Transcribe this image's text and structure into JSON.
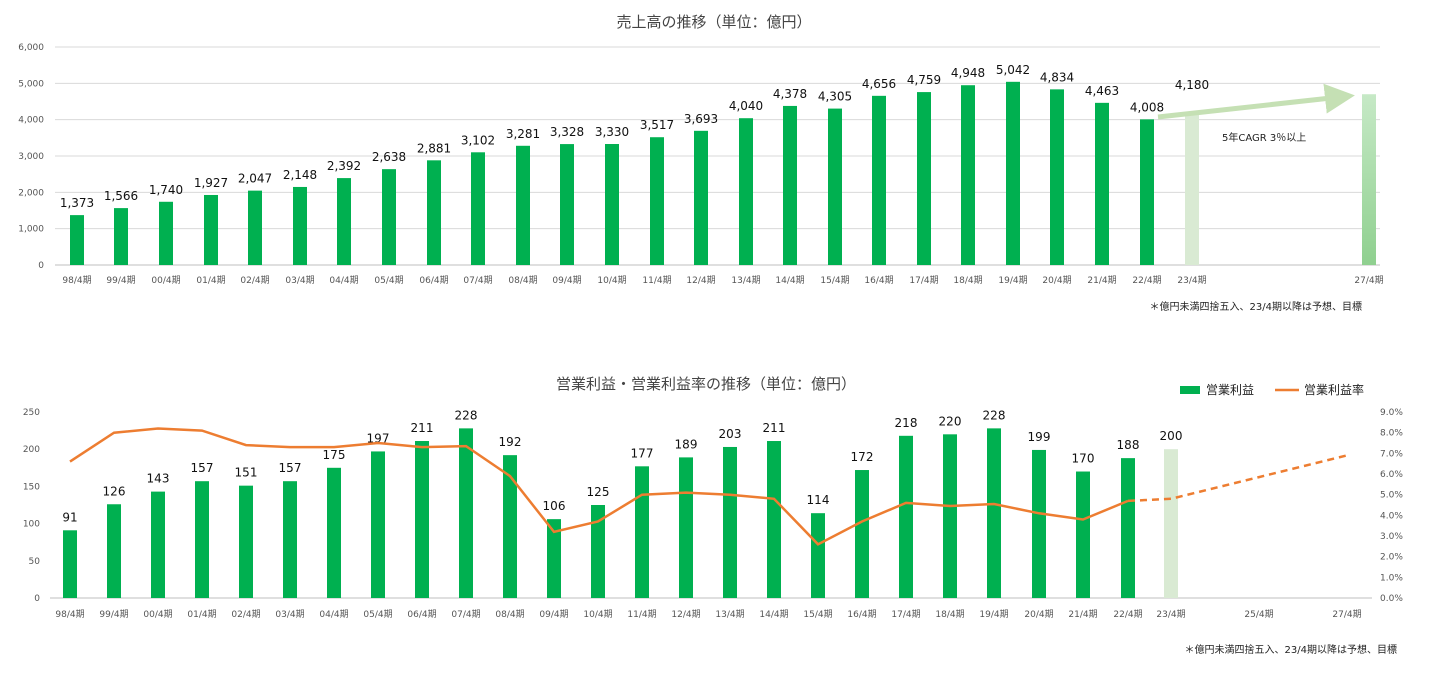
{
  "chart_data": [
    {
      "type": "bar",
      "title": "売上高の推移（単位：億円）",
      "ylim": [
        0,
        6000
      ],
      "yticks": [
        "0",
        "1,000",
        "2,000",
        "3,000",
        "4,000",
        "5,000",
        "6,000"
      ],
      "categories": [
        "98/4期",
        "99/4期",
        "00/4期",
        "01/4期",
        "02/4期",
        "03/4期",
        "04/4期",
        "05/4期",
        "06/4期",
        "07/4期",
        "08/4期",
        "09/4期",
        "10/4期",
        "11/4期",
        "12/4期",
        "13/4期",
        "14/4期",
        "15/4期",
        "16/4期",
        "17/4期",
        "18/4期",
        "19/4期",
        "20/4期",
        "21/4期",
        "22/4期",
        "23/4期",
        "27/4期"
      ],
      "values": [
        1373,
        1566,
        1740,
        1927,
        2047,
        2148,
        2392,
        2638,
        2881,
        3102,
        3281,
        3328,
        3330,
        3517,
        3693,
        4040,
        4378,
        4305,
        4656,
        4759,
        4948,
        5042,
        4834,
        4463,
        4008,
        4180,
        4700
      ],
      "labels": [
        "1,373",
        "1,566",
        "1,740",
        "1,927",
        "2,047",
        "2,148",
        "2,392",
        "2,638",
        "2,881",
        "3,102",
        "3,281",
        "3,328",
        "3,330",
        "3,517",
        "3,693",
        "4,040",
        "4,378",
        "4,305",
        "4,656",
        "4,759",
        "4,948",
        "5,042",
        "4,834",
        "4,463",
        "4,008",
        "4,180",
        ""
      ],
      "forecast_from_index": 25,
      "annotation": "5年CAGR 3％以上",
      "note": "＊億円未満四捨五入、23/4期以降は予想、目標",
      "grid": true,
      "colors": {
        "actual": "#00b050",
        "forecast": "#d9ead3",
        "target": "#a9dca9",
        "arrow": "#c5e0b4"
      }
    },
    {
      "type": "bar+line",
      "title": "営業利益・営業利益率の推移（単位：億円）",
      "ylim": [
        0,
        250
      ],
      "yticks": [
        "0",
        "50",
        "100",
        "150",
        "200",
        "250"
      ],
      "y2lim": [
        0,
        9.0
      ],
      "y2ticks": [
        "0.0%",
        "1.0%",
        "2.0%",
        "3.0%",
        "4.0%",
        "5.0%",
        "6.0%",
        "7.0%",
        "8.0%",
        "9.0%"
      ],
      "categories": [
        "98/4期",
        "99/4期",
        "00/4期",
        "01/4期",
        "02/4期",
        "03/4期",
        "04/4期",
        "05/4期",
        "06/4期",
        "07/4期",
        "08/4期",
        "09/4期",
        "10/4期",
        "11/4期",
        "12/4期",
        "13/4期",
        "14/4期",
        "15/4期",
        "16/4期",
        "17/4期",
        "18/4期",
        "19/4期",
        "20/4期",
        "21/4期",
        "22/4期",
        "23/4期",
        "25/4期",
        "27/4期"
      ],
      "series": [
        {
          "name": "営業利益",
          "type": "bar",
          "values": [
            91,
            126,
            143,
            157,
            151,
            157,
            175,
            197,
            211,
            228,
            192,
            106,
            125,
            177,
            189,
            203,
            211,
            114,
            172,
            218,
            220,
            228,
            199,
            170,
            188,
            200,
            null,
            null
          ]
        },
        {
          "name": "営業利益率",
          "type": "line",
          "values": [
            6.6,
            8.0,
            8.2,
            8.1,
            7.4,
            7.3,
            7.3,
            7.5,
            7.3,
            7.35,
            5.9,
            3.2,
            3.7,
            5.0,
            5.1,
            5.0,
            4.8,
            2.6,
            3.7,
            4.6,
            4.45,
            4.55,
            4.1,
            3.8,
            4.7,
            4.8,
            5.85,
            6.9
          ]
        }
      ],
      "legend_position": "top-right",
      "forecast_from_index": 25,
      "note": "＊億円未満四捨五入、23/4期以降は予想、目標",
      "colors": {
        "bar": "#00b050",
        "forecast": "#d9ead3",
        "line": "#ed7d31"
      }
    }
  ]
}
